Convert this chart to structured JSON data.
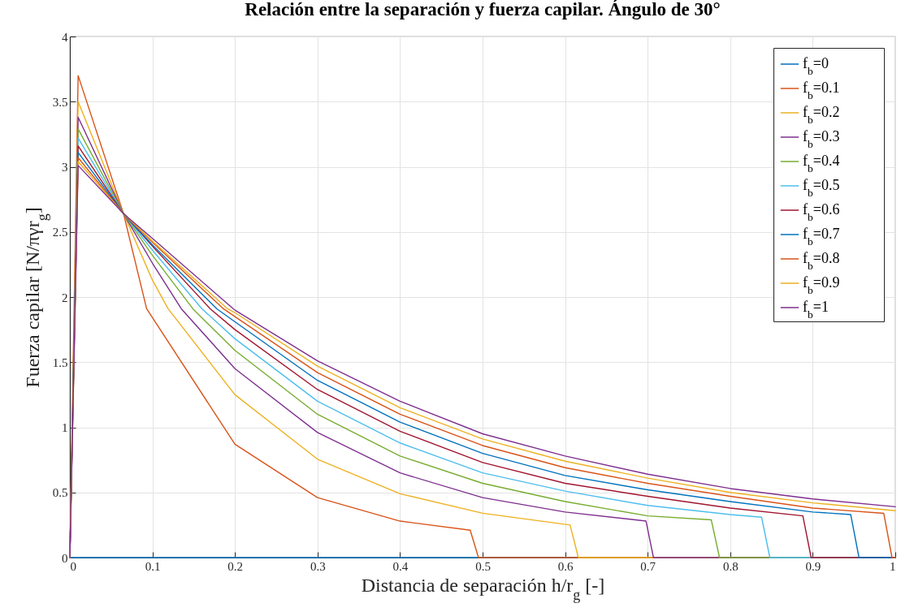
{
  "chart_data": {
    "type": "line",
    "title": "Relación entre la separación y fuerza capilar. Ángulo de 30°",
    "xlabel": "Distancia de separación h/r$_{g}$ [-]",
    "ylabel": "Fuerza capilar [N/πγr$_{g}$]",
    "xlim": [
      0,
      1
    ],
    "xticks": [
      0,
      0.1,
      0.2,
      0.3,
      0.4,
      0.5,
      0.6,
      0.7,
      0.8,
      0.9,
      1
    ],
    "ylim": [
      0,
      4
    ],
    "yticks": [
      0,
      0.5,
      1,
      1.5,
      2,
      2.5,
      3,
      3.5,
      4
    ],
    "grid": true,
    "legend": "top right",
    "line_style": "solid",
    "series": [
      {
        "name": "f$_{b}$=0",
        "color": "#0072bd",
        "x": [
          0,
          1
        ],
        "values": [
          0,
          0
        ]
      },
      {
        "name": "f$_{b}$=0.1",
        "color": "#d95319",
        "x": [
          0,
          0.01,
          0.065,
          0.093,
          0.2,
          0.3,
          0.4,
          0.485,
          0.495,
          1
        ],
        "values": [
          0,
          3.7,
          2.64,
          1.91,
          0.87,
          0.46,
          0.28,
          0.21,
          0,
          0
        ]
      },
      {
        "name": "f$_{b}$=0.2",
        "color": "#edb120",
        "x": [
          0,
          0.01,
          0.065,
          0.1,
          0.119,
          0.2,
          0.3,
          0.4,
          0.5,
          0.606,
          0.616,
          1
        ],
        "values": [
          0,
          3.5,
          2.64,
          2.13,
          1.91,
          1.25,
          0.755,
          0.49,
          0.34,
          0.25,
          0,
          0
        ]
      },
      {
        "name": "f$_{b}$=0.3",
        "color": "#7e2f8e",
        "x": [
          0,
          0.01,
          0.065,
          0.1,
          0.135,
          0.2,
          0.3,
          0.4,
          0.5,
          0.6,
          0.698,
          0.707,
          1
        ],
        "values": [
          0,
          3.38,
          2.64,
          2.26,
          1.91,
          1.45,
          0.96,
          0.65,
          0.46,
          0.35,
          0.28,
          0,
          0
        ]
      },
      {
        "name": "f$_{b}$=0.4",
        "color": "#77ac30",
        "x": [
          0,
          0.01,
          0.065,
          0.1,
          0.149,
          0.2,
          0.3,
          0.4,
          0.5,
          0.6,
          0.7,
          0.777,
          0.787,
          1
        ],
        "values": [
          0,
          3.29,
          2.64,
          2.32,
          1.91,
          1.59,
          1.1,
          0.78,
          0.57,
          0.43,
          0.32,
          0.29,
          0,
          0
        ]
      },
      {
        "name": "f$_{b}$=0.5",
        "color": "#4dbeee",
        "x": [
          0,
          0.01,
          0.065,
          0.1,
          0.16,
          0.2,
          0.3,
          0.4,
          0.5,
          0.6,
          0.7,
          0.8,
          0.838,
          0.848,
          1
        ],
        "values": [
          0,
          3.22,
          2.64,
          2.36,
          1.91,
          1.68,
          1.2,
          0.88,
          0.65,
          0.51,
          0.4,
          0.33,
          0.31,
          0,
          0
        ]
      },
      {
        "name": "f$_{b}$=0.6",
        "color": "#a2142f",
        "x": [
          0,
          0.01,
          0.065,
          0.1,
          0.17,
          0.2,
          0.3,
          0.4,
          0.5,
          0.6,
          0.7,
          0.8,
          0.888,
          0.898,
          1
        ],
        "values": [
          0,
          3.16,
          2.64,
          2.39,
          1.91,
          1.75,
          1.29,
          0.97,
          0.73,
          0.57,
          0.47,
          0.38,
          0.32,
          0,
          0
        ]
      },
      {
        "name": "f$_{b}$=0.7",
        "color": "#0072bd",
        "x": [
          0,
          0.01,
          0.065,
          0.1,
          0.178,
          0.2,
          0.3,
          0.4,
          0.5,
          0.6,
          0.7,
          0.8,
          0.9,
          0.946,
          0.956,
          1
        ],
        "values": [
          0,
          3.11,
          2.64,
          2.4,
          1.91,
          1.81,
          1.36,
          1.04,
          0.8,
          0.63,
          0.52,
          0.43,
          0.35,
          0.33,
          0,
          0
        ]
      },
      {
        "name": "f$_{b}$=0.8",
        "color": "#d95319",
        "x": [
          0,
          0.01,
          0.065,
          0.1,
          0.186,
          0.2,
          0.3,
          0.4,
          0.5,
          0.6,
          0.7,
          0.8,
          0.9,
          0.986,
          0.996,
          1
        ],
        "values": [
          0,
          3.07,
          2.64,
          2.42,
          1.91,
          1.85,
          1.42,
          1.1,
          0.86,
          0.69,
          0.57,
          0.47,
          0.38,
          0.34,
          0,
          0
        ]
      },
      {
        "name": "f$_{b}$=0.9",
        "color": "#edb120",
        "x": [
          0,
          0.01,
          0.065,
          0.1,
          0.191,
          0.2,
          0.3,
          0.4,
          0.5,
          0.6,
          0.7,
          0.8,
          0.9,
          1
        ],
        "values": [
          0,
          3.04,
          2.64,
          2.43,
          1.91,
          1.88,
          1.47,
          1.15,
          0.91,
          0.74,
          0.61,
          0.5,
          0.42,
          0.36
        ]
      },
      {
        "name": "f$_{b}$=1",
        "color": "#7e2f8e",
        "x": [
          0,
          0.01,
          0.065,
          0.1,
          0.198,
          0.2,
          0.3,
          0.4,
          0.5,
          0.6,
          0.7,
          0.8,
          0.9,
          1
        ],
        "values": [
          0,
          3.01,
          2.64,
          2.45,
          1.91,
          1.9,
          1.51,
          1.2,
          0.95,
          0.78,
          0.64,
          0.53,
          0.45,
          0.39
        ]
      }
    ]
  }
}
